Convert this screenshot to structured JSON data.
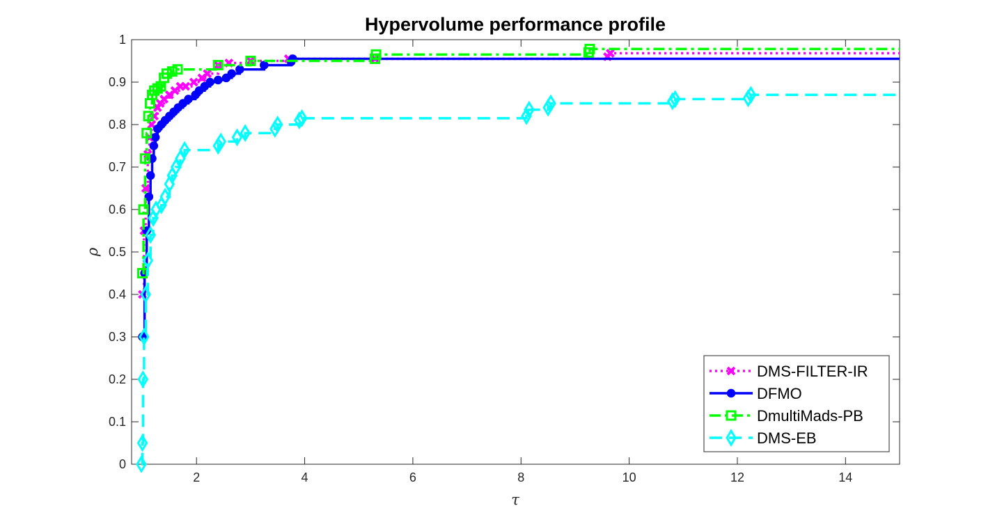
{
  "chart_data": {
    "type": "line",
    "title": "Hypervolume performance profile",
    "xlabel": "τ",
    "ylabel": "ρ",
    "xlim": [
      0.8,
      15
    ],
    "ylim": [
      0,
      1
    ],
    "xticks": [
      2,
      4,
      6,
      8,
      10,
      12,
      14
    ],
    "yticks": [
      0,
      0.1,
      0.2,
      0.3,
      0.4,
      0.5,
      0.6,
      0.7,
      0.8,
      0.9,
      1
    ],
    "ytick_labels": [
      "0",
      "0.1",
      "0.2",
      "0.3",
      "0.4",
      "0.5",
      "0.6",
      "0.7",
      "0.8",
      "0.9",
      "1"
    ],
    "grid": false,
    "legend_position": "bottom-right",
    "series": [
      {
        "name": "DMS-FILTER-IR",
        "color": "#ff00ff",
        "line_style": "dotted",
        "marker": "x",
        "points": [
          [
            1.0,
            0.4
          ],
          [
            1.03,
            0.55
          ],
          [
            1.06,
            0.65
          ],
          [
            1.1,
            0.73
          ],
          [
            1.13,
            0.77
          ],
          [
            1.17,
            0.8
          ],
          [
            1.22,
            0.82
          ],
          [
            1.28,
            0.84
          ],
          [
            1.33,
            0.85
          ],
          [
            1.4,
            0.86
          ],
          [
            1.5,
            0.87
          ],
          [
            1.6,
            0.88
          ],
          [
            1.7,
            0.89
          ],
          [
            1.8,
            0.89
          ],
          [
            1.95,
            0.9
          ],
          [
            2.1,
            0.91
          ],
          [
            2.2,
            0.92
          ],
          [
            2.4,
            0.94
          ],
          [
            2.6,
            0.945
          ],
          [
            3.0,
            0.95
          ],
          [
            3.7,
            0.955
          ],
          [
            5.3,
            0.955
          ],
          [
            9.6,
            0.96
          ],
          [
            9.65,
            0.968
          ],
          [
            15,
            0.968
          ]
        ]
      },
      {
        "name": "DFMO",
        "color": "#0000ff",
        "line_style": "solid",
        "marker": "o",
        "points": [
          [
            1.0,
            0.3
          ],
          [
            1.04,
            0.45
          ],
          [
            1.08,
            0.55
          ],
          [
            1.12,
            0.63
          ],
          [
            1.15,
            0.68
          ],
          [
            1.18,
            0.72
          ],
          [
            1.21,
            0.75
          ],
          [
            1.24,
            0.77
          ],
          [
            1.28,
            0.79
          ],
          [
            1.35,
            0.8
          ],
          [
            1.42,
            0.81
          ],
          [
            1.5,
            0.82
          ],
          [
            1.58,
            0.83
          ],
          [
            1.66,
            0.84
          ],
          [
            1.75,
            0.85
          ],
          [
            1.85,
            0.86
          ],
          [
            1.98,
            0.87
          ],
          [
            2.05,
            0.88
          ],
          [
            2.15,
            0.89
          ],
          [
            2.25,
            0.9
          ],
          [
            2.4,
            0.905
          ],
          [
            2.55,
            0.91
          ],
          [
            2.65,
            0.92
          ],
          [
            2.8,
            0.93
          ],
          [
            3.25,
            0.94
          ],
          [
            3.75,
            0.948
          ],
          [
            3.78,
            0.955
          ],
          [
            15,
            0.955
          ]
        ]
      },
      {
        "name": "DmultiMads-PB",
        "color": "#00ff00",
        "line_style": "dash-dot",
        "marker": "square",
        "points": [
          [
            1.0,
            0.45
          ],
          [
            1.02,
            0.6
          ],
          [
            1.05,
            0.72
          ],
          [
            1.08,
            0.78
          ],
          [
            1.11,
            0.82
          ],
          [
            1.14,
            0.85
          ],
          [
            1.18,
            0.87
          ],
          [
            1.22,
            0.88
          ],
          [
            1.28,
            0.885
          ],
          [
            1.34,
            0.89
          ],
          [
            1.4,
            0.91
          ],
          [
            1.45,
            0.92
          ],
          [
            1.55,
            0.925
          ],
          [
            1.65,
            0.93
          ],
          [
            2.4,
            0.94
          ],
          [
            3.0,
            0.95
          ],
          [
            5.3,
            0.955
          ],
          [
            5.32,
            0.965
          ],
          [
            9.25,
            0.97
          ],
          [
            9.27,
            0.978
          ],
          [
            15,
            0.978
          ]
        ]
      },
      {
        "name": "DMS-EB",
        "color": "#00ffff",
        "line_style": "dashed",
        "marker": "diamond",
        "points": [
          [
            0.98,
            0.0
          ],
          [
            1.0,
            0.05
          ],
          [
            1.01,
            0.2
          ],
          [
            1.03,
            0.3
          ],
          [
            1.06,
            0.4
          ],
          [
            1.1,
            0.48
          ],
          [
            1.15,
            0.54
          ],
          [
            1.2,
            0.58
          ],
          [
            1.25,
            0.6
          ],
          [
            1.35,
            0.61
          ],
          [
            1.42,
            0.63
          ],
          [
            1.5,
            0.66
          ],
          [
            1.55,
            0.68
          ],
          [
            1.62,
            0.7
          ],
          [
            1.7,
            0.72
          ],
          [
            1.78,
            0.74
          ],
          [
            2.4,
            0.75
          ],
          [
            2.45,
            0.76
          ],
          [
            2.75,
            0.77
          ],
          [
            2.9,
            0.78
          ],
          [
            3.45,
            0.79
          ],
          [
            3.5,
            0.8
          ],
          [
            3.9,
            0.81
          ],
          [
            3.95,
            0.815
          ],
          [
            8.1,
            0.82
          ],
          [
            8.15,
            0.835
          ],
          [
            8.5,
            0.84
          ],
          [
            8.55,
            0.85
          ],
          [
            10.8,
            0.855
          ],
          [
            10.85,
            0.86
          ],
          [
            12.2,
            0.862
          ],
          [
            12.25,
            0.87
          ],
          [
            15,
            0.87
          ]
        ]
      }
    ]
  }
}
